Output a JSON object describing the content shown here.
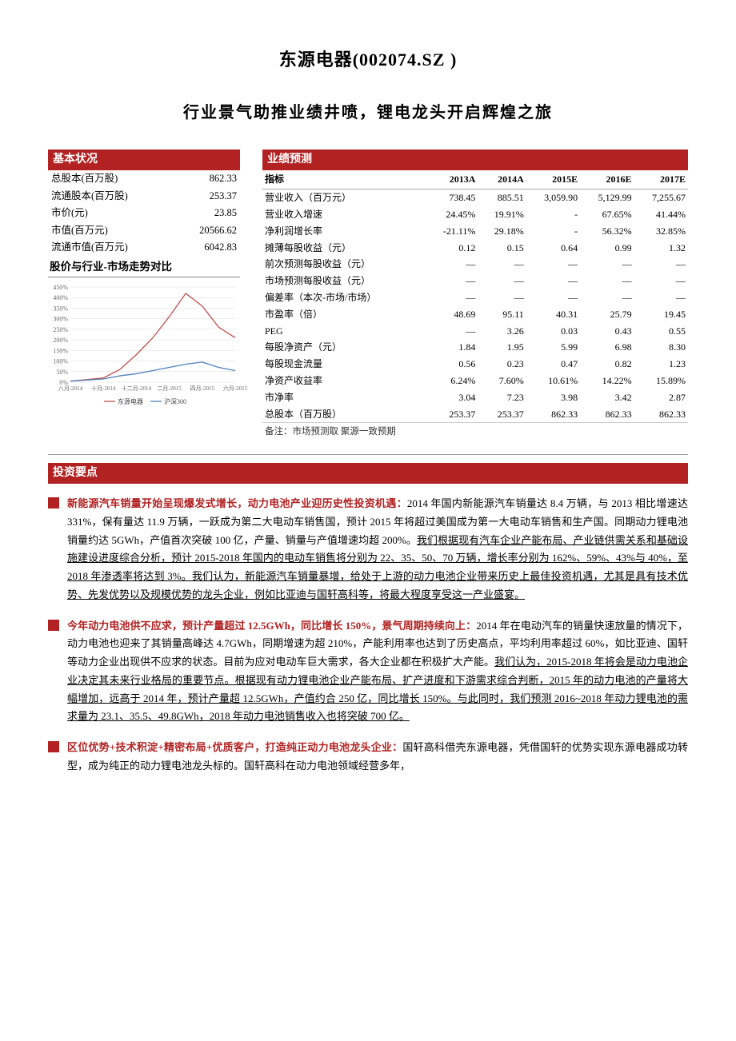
{
  "company": {
    "name": "东源电器(002074.SZ )",
    "report_title": "行业景气助推业绩井喷，锂电龙头开启辉煌之旅"
  },
  "basic": {
    "header": "基本状况",
    "rows": [
      {
        "label": "总股本(百万股)",
        "value": "862.33"
      },
      {
        "label": "流通股本(百万股)",
        "value": "253.37"
      },
      {
        "label": "市价(元)",
        "value": "23.85"
      },
      {
        "label": "市值(百万元)",
        "value": "20566.62"
      },
      {
        "label": "流通市值(百万元)",
        "value": "6042.83"
      }
    ]
  },
  "trend": {
    "header": "股价与行业-市场走势对比",
    "chart": {
      "type": "line",
      "bg": "#ffffff",
      "grid_color": "#dddddd",
      "x_labels": [
        "八月-2014",
        "十月-2014",
        "十二月-2014",
        "二月-2015",
        "四月-2015",
        "六月-2015"
      ],
      "y_ticks": [
        0,
        50,
        100,
        150,
        200,
        250,
        300,
        350,
        400,
        450
      ],
      "y_suffix": "%",
      "series": [
        {
          "name": "东源电器",
          "color": "#c0504d",
          "data": [
            5,
            12,
            20,
            60,
            130,
            210,
            310,
            420,
            360,
            260,
            210
          ]
        },
        {
          "name": "沪深300",
          "color": "#4f81bd",
          "data": [
            5,
            10,
            15,
            30,
            40,
            55,
            70,
            85,
            95,
            70,
            55
          ]
        }
      ],
      "legend_pos": "bottom-center",
      "legend_fontsize": 8,
      "axis_fontsize": 8
    }
  },
  "forecast": {
    "header": "业绩预测",
    "cols": [
      "指标",
      "2013A",
      "2014A",
      "2015E",
      "2016E",
      "2017E"
    ],
    "rows": [
      [
        "营业收入（百万元）",
        "738.45",
        "885.51",
        "3,059.90",
        "5,129.99",
        "7,255.67"
      ],
      [
        "营业收入增速",
        "24.45%",
        "19.91%",
        "-",
        "67.65%",
        "41.44%"
      ],
      [
        "净利润增长率",
        "-21.11%",
        "29.18%",
        "-",
        "56.32%",
        "32.85%"
      ],
      [
        "摊薄每股收益（元）",
        "0.12",
        "0.15",
        "0.64",
        "0.99",
        "1.32"
      ],
      [
        "前次预测每股收益（元）",
        "—",
        "—",
        "—",
        "—",
        "—"
      ],
      [
        "市场预测每股收益（元）",
        "—",
        "—",
        "—",
        "—",
        "—"
      ],
      [
        "偏差率（本次-市场/市场）",
        "—",
        "—",
        "—",
        "—",
        "—"
      ],
      [
        "市盈率（倍）",
        "48.69",
        "95.11",
        "40.31",
        "25.79",
        "19.45"
      ],
      [
        "PEG",
        "—",
        "3.26",
        "0.03",
        "0.43",
        "0.55"
      ],
      [
        "每股净资产（元）",
        "1.84",
        "1.95",
        "5.99",
        "6.98",
        "8.30"
      ],
      [
        "每股现金流量",
        "0.56",
        "0.23",
        "0.47",
        "0.82",
        "1.23"
      ],
      [
        "净资产收益率",
        "6.24%",
        "7.60%",
        "10.61%",
        "14.22%",
        "15.89%"
      ],
      [
        "市净率",
        "3.04",
        "7.23",
        "3.98",
        "3.42",
        "2.87"
      ],
      [
        "总股本（百万股）",
        "253.37",
        "253.37",
        "862.33",
        "862.33",
        "862.33"
      ]
    ],
    "note": "备注：市场预测取 聚源一致预期"
  },
  "invest": {
    "header": "投资要点",
    "points": [
      {
        "lead": "新能源汽车销量开始呈现爆发式增长，动力电池产业迎历史性投资机遇：",
        "body_html": "2014 年国内新能源汽车销量达 8.4 万辆，与 2013 相比增速达 331%，保有量达 11.9 万辆，一跃成为第二大电动车销售国，预计 2015 年将超过美国成为第一大电动车销售和生产国。同期动力锂电池销量约达 5GWh，产值首次突破 100 亿，产量、销量与产值增速均超 200%。<u>我们根据现有汽车企业产能布局、产业链供需关系和基础设施建设进度综合分析，预计 2015-2018 年国内的电动车销售将分别为 22、35、50、70 万辆，增长率分别为 162%、59%、43%与 40%，至 2018 年渗透率将达到 3%。我们认为，新能源汽车销量暴增，给处于上游的动力电池企业带来历史上最佳投资机遇，尤其是具有技术优势、先发优势以及规模优势的龙头企业，例如比亚迪与国轩高科等，将最大程度享受这一产业盛宴。</u>"
      },
      {
        "lead": "今年动力电池供不应求，预计产量超过 12.5GWh，同比增长 150%，景气周期持续向上：",
        "body_html": "2014 年在电动汽车的销量快速放量的情况下，动力电池也迎来了其销量高峰达 4.7GWh，同期增速为超 210%，产能利用率也达到了历史高点，平均利用率超过 60%，如比亚迪、国轩等动力企业出现供不应求的状态。目前为应对电动车巨大需求，各大企业都在积极扩大产能。<u>我们认为，2015-2018 年将会是动力电池企业决定其未来行业格局的重要节点。根据现有动力锂电池企业产能布局、扩产进度和下游需求综合判断，2015 年的动力电池的产量将大幅增加，远高于 2014 年，预计产量超 12.5GWh，产值约合 250 亿，同比增长 150%。与此同时，我们预测 2016~2018 年动力锂电池的需求量为 23.1、35.5、49.8GWh，2018 年动力电池销售收入也将突破 700 亿。</u>"
      },
      {
        "lead": "区位优势+技术积淀+精密布局+优质客户，打造纯正动力电池龙头企业：",
        "body_html": "国轩高科借壳东源电器，凭借国轩的优势实现东源电器成功转型，成为纯正的动力锂电池龙头标的。国轩高科在动力电池领域经营多年，"
      }
    ]
  }
}
